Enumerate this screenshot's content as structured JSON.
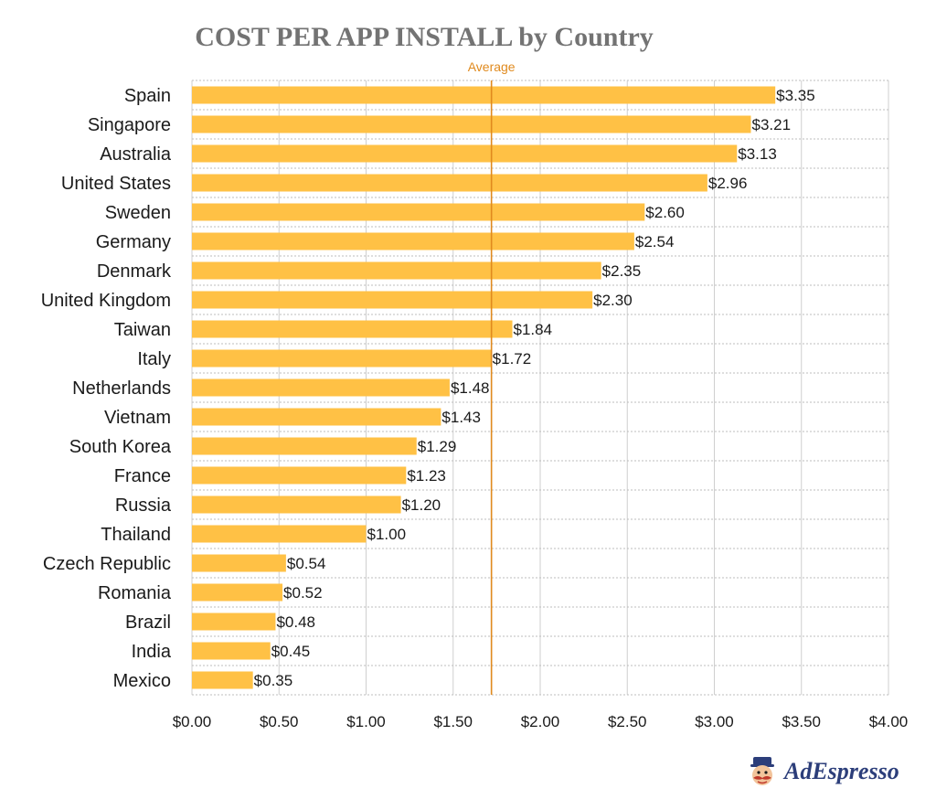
{
  "title": "COST PER APP INSTALL by Country",
  "chart_data": {
    "type": "bar",
    "orientation": "horizontal",
    "title": "COST PER APP INSTALL by Country",
    "xlabel": "",
    "ylabel": "",
    "categories": [
      "Spain",
      "Singapore",
      "Australia",
      "United States",
      "Sweden",
      "Germany",
      "Denmark",
      "United Kingdom",
      "Taiwan",
      "Italy",
      "Netherlands",
      "Vietnam",
      "South Korea",
      "France",
      "Russia",
      "Thailand",
      "Czech Republic",
      "Romania",
      "Brazil",
      "India",
      "Mexico"
    ],
    "values": [
      3.35,
      3.21,
      3.13,
      2.96,
      2.6,
      2.54,
      2.35,
      2.3,
      1.84,
      1.72,
      1.48,
      1.43,
      1.29,
      1.23,
      1.2,
      1.0,
      0.54,
      0.52,
      0.48,
      0.45,
      0.35
    ],
    "value_labels": [
      "$3.35",
      "$3.21",
      "$3.13",
      "$2.96",
      "$2.60",
      "$2.54",
      "$2.35",
      "$2.30",
      "$1.84",
      "$1.72",
      "$1.48",
      "$1.43",
      "$1.29",
      "$1.23",
      "$1.20",
      "$1.00",
      "$0.54",
      "$0.52",
      "$0.48",
      "$0.45",
      "$0.35"
    ],
    "xlim": [
      0,
      4
    ],
    "x_ticks": [
      0,
      0.5,
      1,
      1.5,
      2,
      2.5,
      3,
      3.5,
      4
    ],
    "x_tick_labels": [
      "$0.00",
      "$0.50",
      "$1.00",
      "$1.50",
      "$2.00",
      "$2.50",
      "$3.00",
      "$3.50",
      "$4.00"
    ],
    "reference_line": {
      "label": "Average",
      "value": 1.72,
      "color": "#e08a1e"
    },
    "bar_color": "#ffc145",
    "grid": true
  },
  "logo": {
    "text": "AdEspresso",
    "icon": "mustache-mascot-icon"
  }
}
